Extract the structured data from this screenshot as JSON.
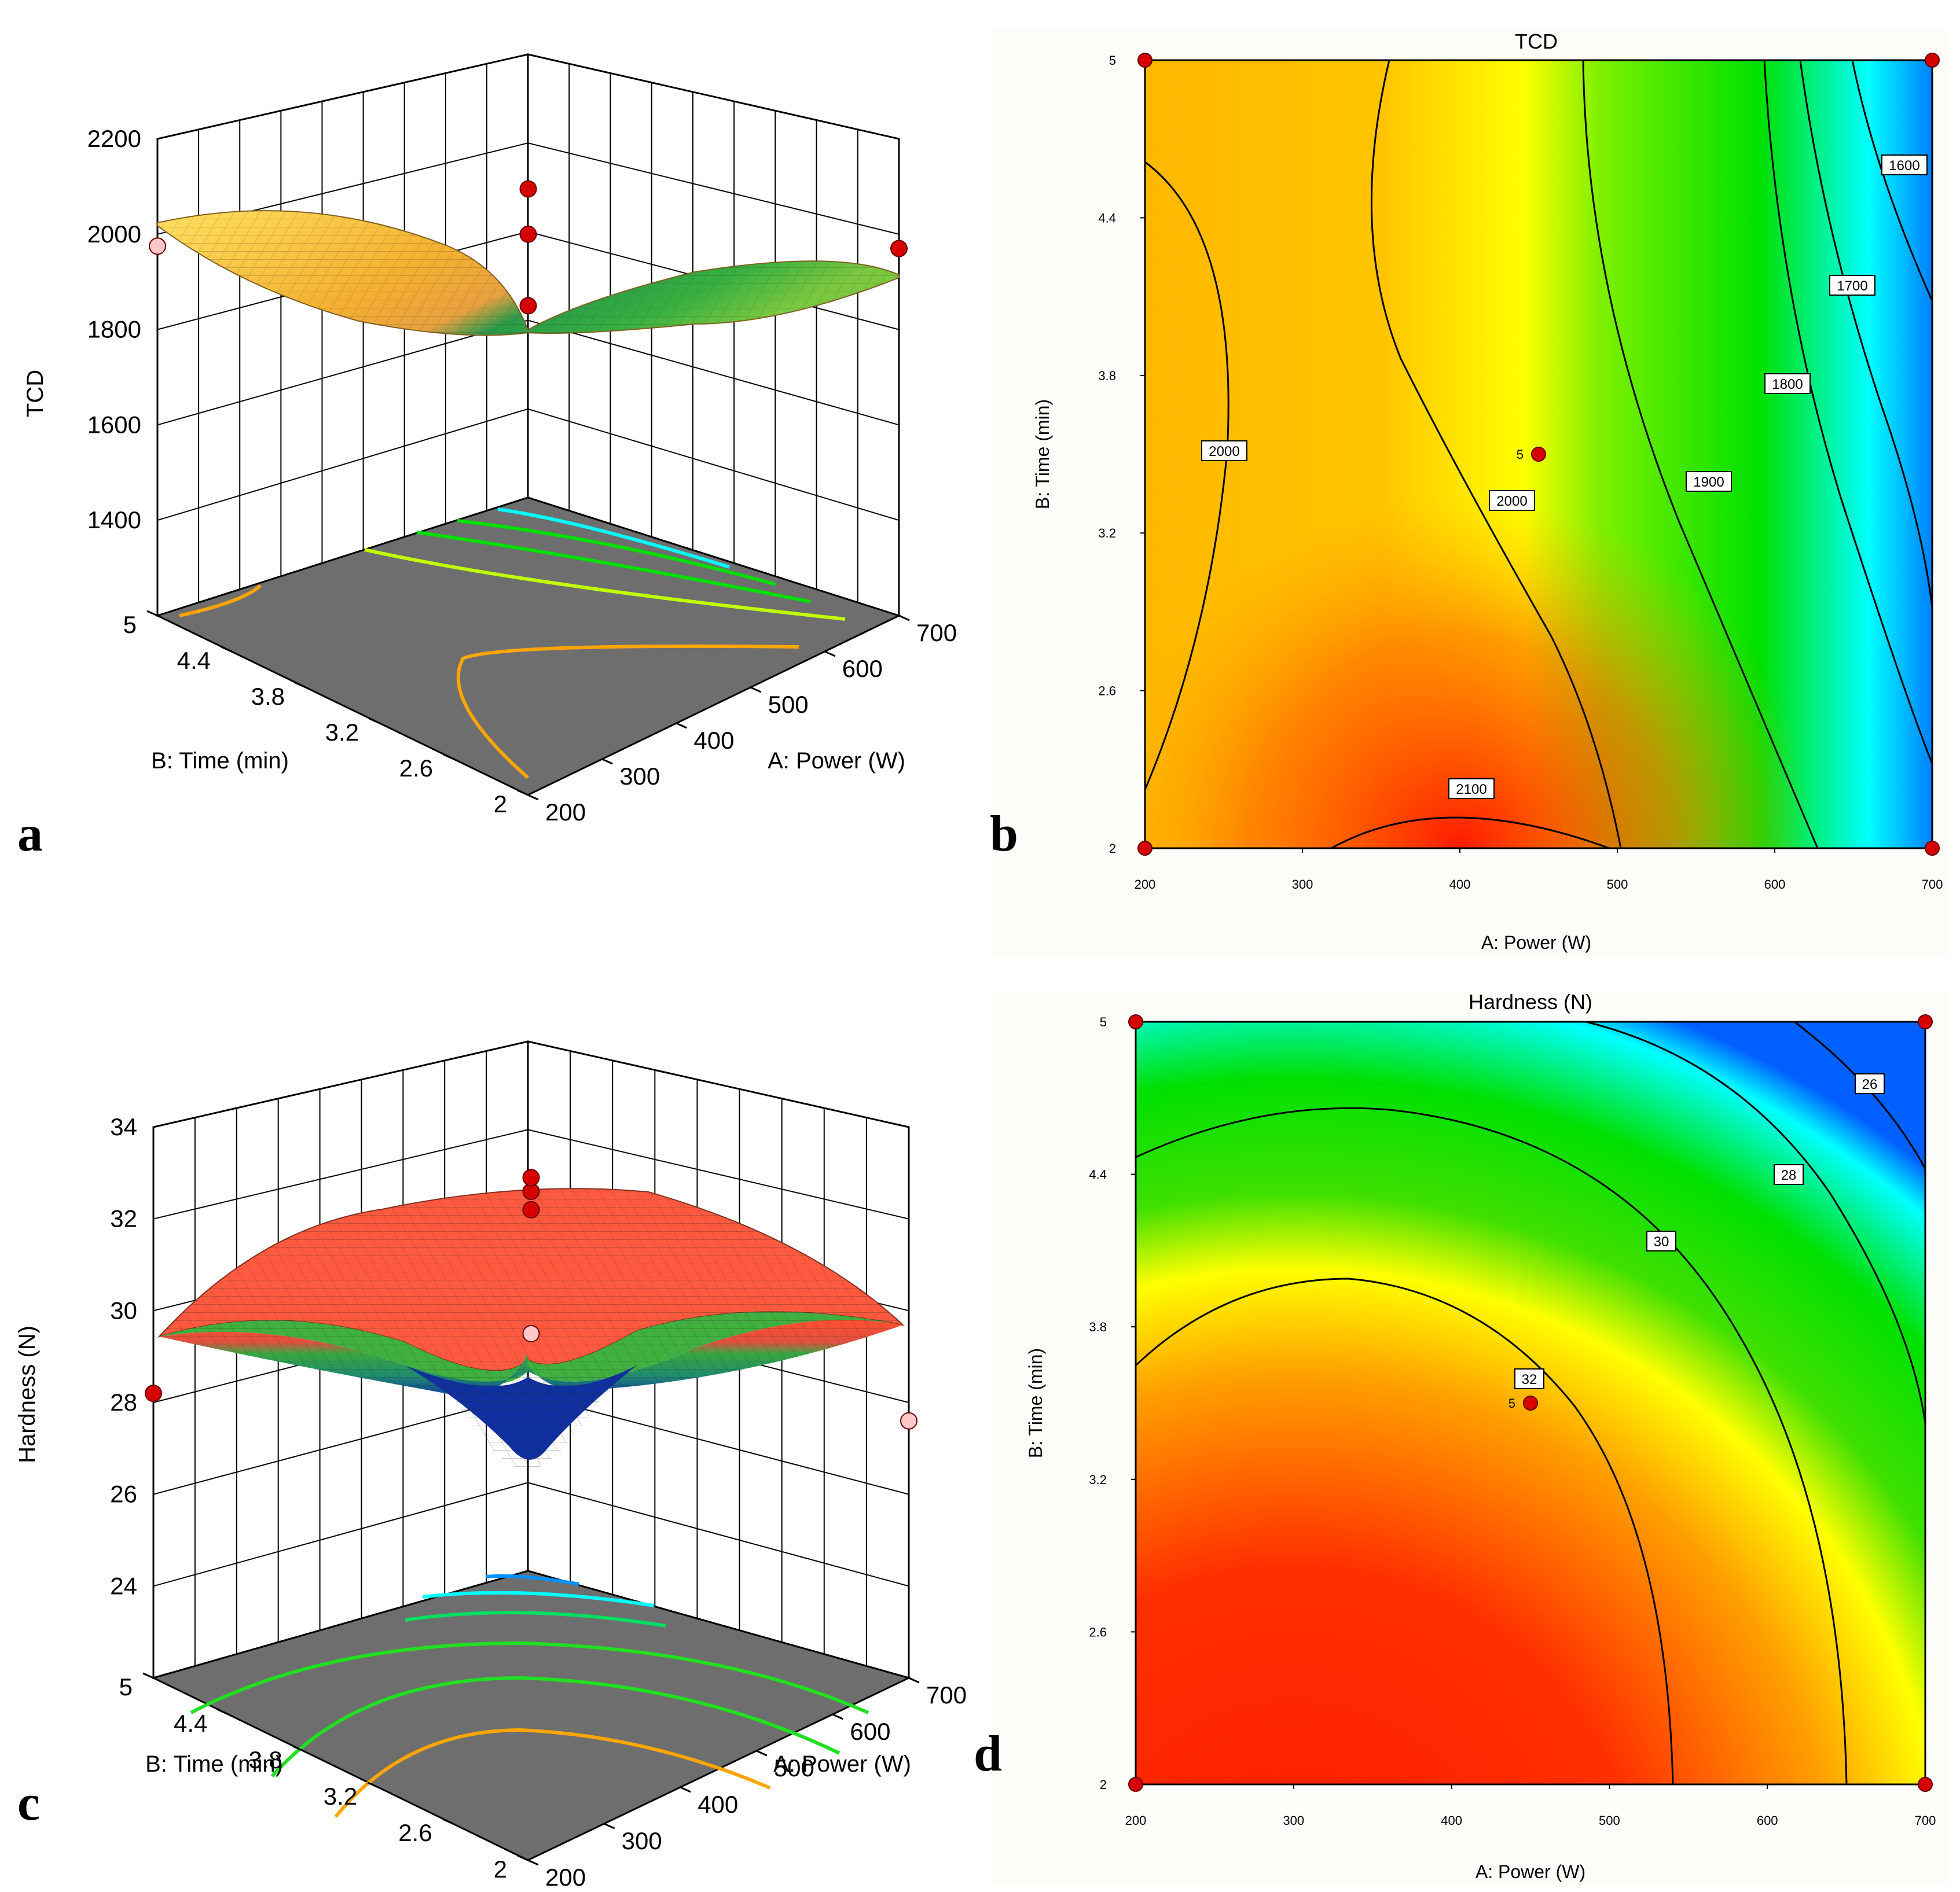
{
  "figure": {
    "panel_labels": [
      "a",
      "b",
      "c",
      "d"
    ]
  },
  "colors": {
    "red": "#ff1a00",
    "orange": "#ff9900",
    "yellow": "#ffff00",
    "green": "#00d400",
    "cyan": "#00ffff",
    "blue": "#0040ff",
    "floor": "#6e6e6e",
    "point_red": "#d60000",
    "point_pink": "#ffc8c8"
  },
  "chart_data": [
    {
      "id": "a",
      "type": "surface3d",
      "title": "",
      "zlabel": "TCD",
      "xlabel": "A: Power (W)",
      "ylabel": "B: Time (min)",
      "x_ticks": [
        "200",
        "300",
        "400",
        "500",
        "600",
        "700"
      ],
      "y_ticks": [
        "2",
        "2.6",
        "3.2",
        "3.8",
        "4.4",
        "5"
      ],
      "z_ticks": [
        "1400",
        "1600",
        "1800",
        "2000",
        "2200"
      ],
      "zlim": [
        1200,
        2200
      ],
      "xlim": [
        200,
        700
      ],
      "ylim": [
        2,
        5
      ],
      "surface_corners": {
        "A200_B2": 2040,
        "A700_B2": 1960,
        "A700_B5": 1600,
        "A200_B5": 1975
      },
      "design_points": [
        {
          "A": 200,
          "B": 5,
          "value": 1975,
          "color": "pink"
        },
        {
          "A": 700,
          "B": 2,
          "value": 1970,
          "color": "red"
        },
        {
          "A": 450,
          "B": 3.5,
          "value": 2000,
          "color": "red"
        },
        {
          "A": 450,
          "B": 3.5,
          "value": 2095,
          "color": "red"
        },
        {
          "A": 450,
          "B": 3.5,
          "value": 1850,
          "color": "red"
        }
      ]
    },
    {
      "id": "b",
      "type": "contour",
      "title": "TCD",
      "xlabel": "A: Power (W)",
      "ylabel": "B: Time (min)",
      "x_ticks": [
        "200",
        "300",
        "400",
        "500",
        "600",
        "700"
      ],
      "y_ticks": [
        "2",
        "2.6",
        "3.2",
        "3.8",
        "4.4",
        "5"
      ],
      "xlim": [
        200,
        700
      ],
      "ylim": [
        2,
        5
      ],
      "contour_labels": [
        "2000",
        "2000",
        "2100",
        "1900",
        "1800",
        "1700",
        "1600"
      ],
      "center_point": {
        "A": 450,
        "B": 3.5,
        "label": "5"
      },
      "design_points": [
        {
          "A": 200,
          "B": 5
        },
        {
          "A": 700,
          "B": 5
        },
        {
          "A": 200,
          "B": 2
        },
        {
          "A": 700,
          "B": 2
        }
      ]
    },
    {
      "id": "c",
      "type": "surface3d",
      "title": "",
      "zlabel": "Hardness (N)",
      "xlabel": "A: Power (W)",
      "ylabel": "B: Time (min)",
      "x_ticks": [
        "200",
        "300",
        "400",
        "500",
        "600",
        "700"
      ],
      "y_ticks": [
        "2",
        "2.6",
        "3.2",
        "3.8",
        "4.4",
        "5"
      ],
      "z_ticks": [
        "24",
        "26",
        "28",
        "30",
        "32",
        "34"
      ],
      "zlim": [
        22,
        34
      ],
      "xlim": [
        200,
        700
      ],
      "ylim": [
        2,
        5
      ],
      "surface_corners": {
        "A200_B2": 30,
        "A700_B2": 28.2,
        "A700_B5": 25.3,
        "A200_B5": 28.3
      },
      "design_points": [
        {
          "A": 200,
          "B": 5,
          "value": 28.2,
          "color": "red"
        },
        {
          "A": 700,
          "B": 2,
          "value": 27.6,
          "color": "pink"
        },
        {
          "A": 450,
          "B": 3.5,
          "value": 32.2,
          "color": "red"
        },
        {
          "A": 450,
          "B": 3.5,
          "value": 32.6,
          "color": "red"
        },
        {
          "A": 450,
          "B": 3.5,
          "value": 32.9,
          "color": "red"
        },
        {
          "A": 450,
          "B": 3.5,
          "value": 29.5,
          "color": "pink"
        }
      ]
    },
    {
      "id": "d",
      "type": "contour",
      "title": "Hardness (N)",
      "xlabel": "A: Power (W)",
      "ylabel": "B: Time (min)",
      "x_ticks": [
        "200",
        "300",
        "400",
        "500",
        "600",
        "700"
      ],
      "y_ticks": [
        "2",
        "2.6",
        "3.2",
        "3.8",
        "4.4",
        "5"
      ],
      "xlim": [
        200,
        700
      ],
      "ylim": [
        2,
        5
      ],
      "contour_labels": [
        "32",
        "30",
        "28",
        "26"
      ],
      "center_point": {
        "A": 450,
        "B": 3.5,
        "label": "5"
      },
      "design_points": [
        {
          "A": 200,
          "B": 5
        },
        {
          "A": 700,
          "B": 5
        },
        {
          "A": 200,
          "B": 2
        },
        {
          "A": 700,
          "B": 2
        }
      ]
    }
  ]
}
